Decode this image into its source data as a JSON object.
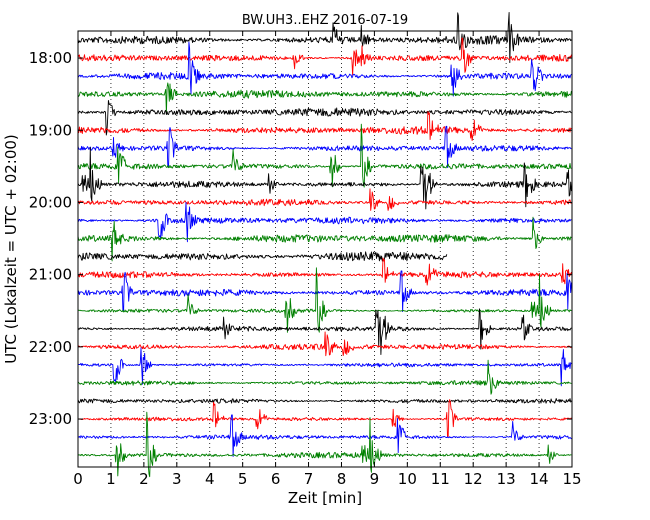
{
  "chart_data": {
    "type": "line",
    "title": "BW.UH3..EHZ 2016-07-19",
    "xlabel": "Zeit  [min]",
    "ylabel": "UTC (Lokalzeit = UTC + 02:00)",
    "xlim": [
      0,
      15
    ],
    "xticks": [
      "0",
      "1",
      "2",
      "3",
      "4",
      "5",
      "6",
      "7",
      "8",
      "9",
      "10",
      "11",
      "12",
      "13",
      "14",
      "15"
    ],
    "ytick_labels": [
      "18:00",
      "19:00",
      "20:00",
      "21:00",
      "22:00",
      "23:00"
    ],
    "grid": "vertical-dotted",
    "colors": [
      "#000000",
      "#ff0000",
      "#0000ff",
      "#008000"
    ],
    "traces": [
      {
        "start": "17:45",
        "amp": 0.55
      },
      {
        "start": "18:00",
        "amp": 0.45
      },
      {
        "start": "18:15",
        "amp": 0.45
      },
      {
        "start": "18:30",
        "amp": 0.5
      },
      {
        "start": "18:45",
        "amp": 0.55
      },
      {
        "start": "19:00",
        "amp": 0.5
      },
      {
        "start": "19:15",
        "amp": 0.4
      },
      {
        "start": "19:30",
        "amp": 0.4
      },
      {
        "start": "19:45",
        "amp": 0.4
      },
      {
        "start": "20:00",
        "amp": 0.4
      },
      {
        "start": "20:15",
        "amp": 0.45
      },
      {
        "start": "20:30",
        "amp": 0.55
      },
      {
        "start": "20:45",
        "amp": 0.65,
        "end": 11.2
      },
      {
        "start": "21:00",
        "amp": 0.4
      },
      {
        "start": "21:15",
        "amp": 0.45
      },
      {
        "start": "21:30",
        "amp": 0.25
      },
      {
        "start": "21:45",
        "amp": 0.35
      },
      {
        "start": "22:00",
        "amp": 0.4
      },
      {
        "start": "22:15",
        "amp": 0.25
      },
      {
        "start": "22:30",
        "amp": 0.3
      },
      {
        "start": "22:45",
        "amp": 0.3
      },
      {
        "start": "23:00",
        "amp": 0.25
      },
      {
        "start": "23:15",
        "amp": 0.3
      },
      {
        "start": "23:30",
        "amp": 0.35
      }
    ]
  }
}
